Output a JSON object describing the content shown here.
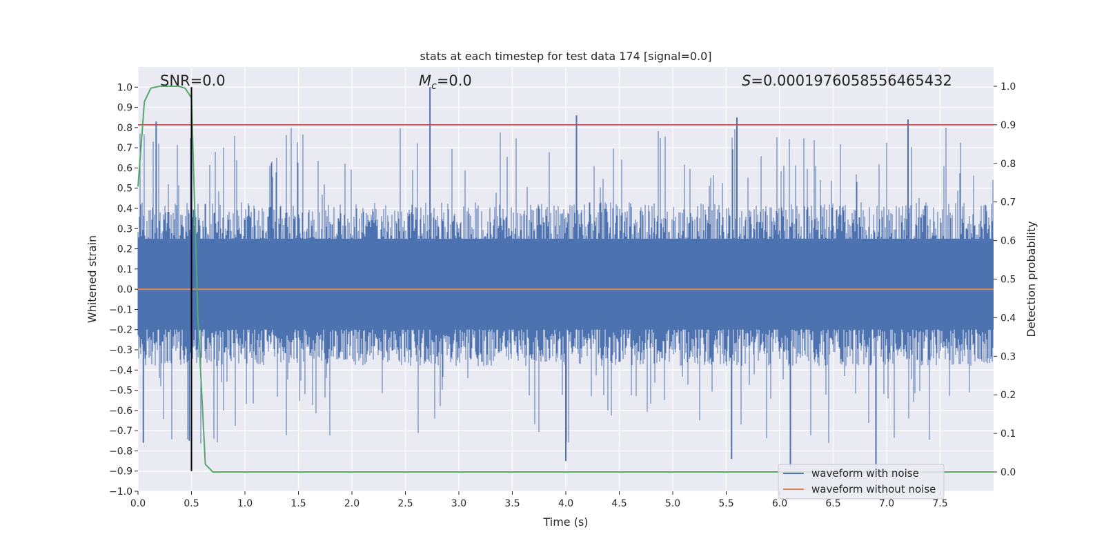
{
  "chart_data": {
    "type": "line",
    "title": "stats at each timestep for test data 174 [signal=0.0]",
    "xlabel": "Time (s)",
    "ylabel": "Whitened strain",
    "ylabel_right": "Detection probability",
    "xlim": [
      0.0,
      8.0
    ],
    "ylim": [
      -1.0,
      1.1
    ],
    "ylim_right": [
      -0.05,
      1.05
    ],
    "grid": true,
    "x_ticks": [
      0.0,
      0.5,
      1.0,
      1.5,
      2.0,
      2.5,
      3.0,
      3.5,
      4.0,
      4.5,
      5.0,
      5.5,
      6.0,
      6.5,
      7.0,
      7.5
    ],
    "x_tick_labels": [
      "0.0",
      "0.5",
      "1.0",
      "1.5",
      "2.0",
      "2.5",
      "3.0",
      "3.5",
      "4.0",
      "4.5",
      "5.0",
      "5.5",
      "6.0",
      "6.5",
      "7.0",
      "7.5"
    ],
    "y_ticks": [
      -1.0,
      -0.9,
      -0.8,
      -0.7,
      -0.6,
      -0.5,
      -0.4,
      -0.3,
      -0.2,
      -0.1,
      0.0,
      0.1,
      0.2,
      0.3,
      0.4,
      0.5,
      0.6,
      0.7,
      0.8,
      0.9,
      1.0
    ],
    "y_tick_labels": [
      "−1.0",
      "−0.9",
      "−0.8",
      "−0.7",
      "−0.6",
      "−0.5",
      "−0.4",
      "−0.3",
      "−0.2",
      "−0.1",
      "0.0",
      "0.1",
      "0.2",
      "0.3",
      "0.4",
      "0.5",
      "0.6",
      "0.7",
      "0.8",
      "0.9",
      "1.0"
    ],
    "y_right_ticks": [
      0.0,
      0.1,
      0.2,
      0.3,
      0.4,
      0.5,
      0.6,
      0.7,
      0.8,
      0.9,
      1.0
    ],
    "y_right_tick_labels": [
      "0.0",
      "0.1",
      "0.2",
      "0.3",
      "0.4",
      "0.5",
      "0.6",
      "0.7",
      "0.8",
      "0.9",
      "1.0"
    ],
    "annotations": {
      "snr": "SNR=0.0",
      "mc_symbol": "M",
      "mc_sub": "c",
      "mc_value": "=0.0",
      "s_symbol": "S",
      "s_value": "=0.0001976058556465432"
    },
    "series": [
      {
        "name": "waveform with noise",
        "color": "#4c72b0",
        "description_values": {
          "envelope_core": [
            -0.35,
            0.4
          ],
          "peaks": [
            {
              "x": 0.17,
              "y": 0.83
            },
            {
              "x": 2.73,
              "y": 1.0
            },
            {
              "x": 4.1,
              "y": 0.86
            },
            {
              "x": 5.6,
              "y": 0.85
            },
            {
              "x": 7.2,
              "y": 0.84
            },
            {
              "x": 4.0,
              "y": -0.85
            },
            {
              "x": 5.55,
              "y": -0.84
            },
            {
              "x": 6.1,
              "y": -0.88
            },
            {
              "x": 6.9,
              "y": -0.9
            },
            {
              "x": 0.05,
              "y": -0.76
            },
            {
              "x": 0.48,
              "y": -0.75
            }
          ]
        }
      },
      {
        "name": "waveform without noise",
        "color": "#dd8452",
        "values_constant": 0.0
      },
      {
        "name": "detection probability",
        "color": "#55a868",
        "axis": "right",
        "x": [
          0.0,
          0.06,
          0.12,
          0.2,
          0.3,
          0.38,
          0.44,
          0.5,
          0.56,
          0.63,
          0.7,
          1.0,
          8.0
        ],
        "values": [
          0.74,
          0.96,
          0.995,
          1.0,
          1.0,
          1.0,
          0.995,
          0.97,
          0.4,
          0.02,
          0.0,
          0.0,
          0.0
        ]
      },
      {
        "name": "threshold",
        "color": "#c44e52",
        "axis": "right",
        "values_constant": 0.9
      },
      {
        "name": "marker",
        "color": "#000000",
        "x": 0.5,
        "y_range": [
          -0.9,
          1.0
        ]
      }
    ],
    "legend": {
      "position": "lower-right",
      "entries": [
        {
          "label": "waveform with noise",
          "color": "#4c72b0"
        },
        {
          "label": "waveform without noise",
          "color": "#dd8452"
        }
      ]
    },
    "colors": {
      "background": "#eaeaf2",
      "grid": "#ffffff"
    }
  }
}
